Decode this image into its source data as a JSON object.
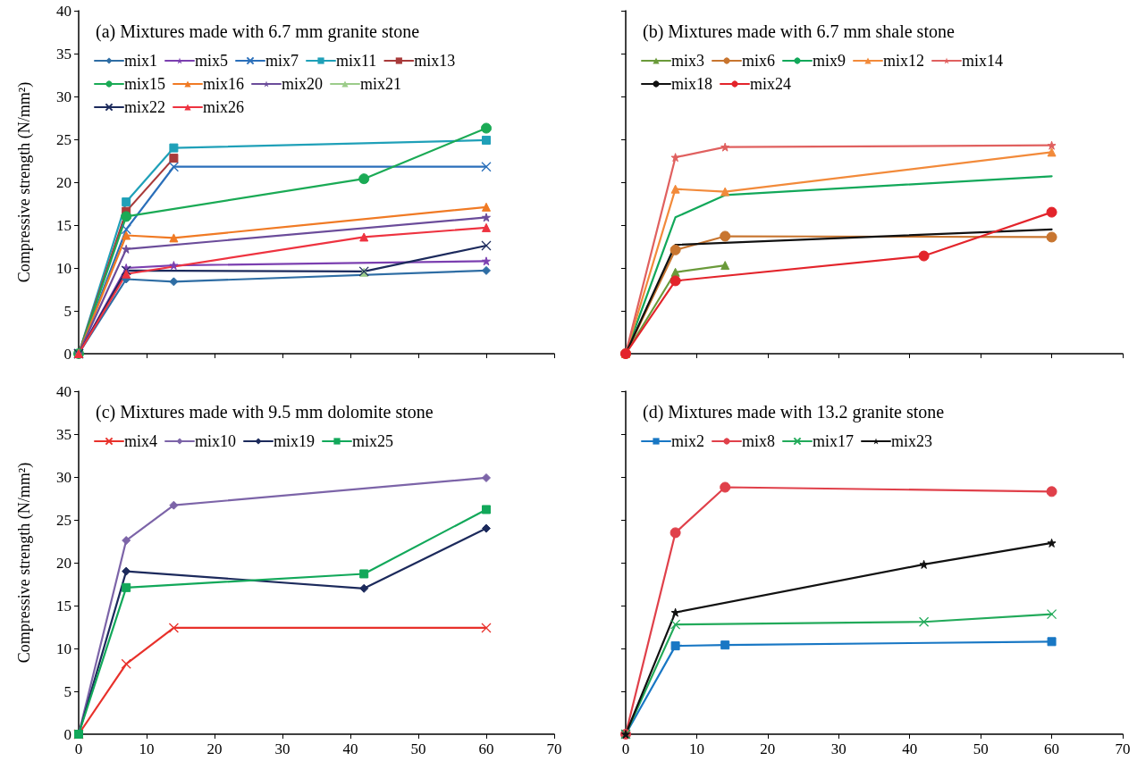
{
  "chart_data": [
    {
      "type": "line",
      "title": "(a) Mixtures made with 6.7 mm granite stone",
      "ylabel": "Compressive strength (N/mm²)",
      "xlim": [
        0,
        70
      ],
      "xticks": [
        0,
        10,
        20,
        30,
        40,
        50,
        60,
        70
      ],
      "ylim": [
        0,
        40
      ],
      "yticks": [
        0,
        5,
        10,
        15,
        20,
        25,
        30,
        35,
        40
      ],
      "tick_labels": "y",
      "legend": "top left",
      "grid": false,
      "series": [
        {
          "name": "mix1",
          "color": "#2e6da4",
          "marker": "diamond",
          "x": [
            0,
            7,
            14,
            60
          ],
          "values": [
            0,
            8.7,
            8.4,
            9.7
          ]
        },
        {
          "name": "mix5",
          "color": "#7b3fb0",
          "marker": "star",
          "x": [
            0,
            7,
            14,
            60
          ],
          "values": [
            0,
            10.0,
            10.3,
            10.8
          ]
        },
        {
          "name": "mix7",
          "color": "#2a6fba",
          "marker": "cross",
          "x": [
            0,
            7,
            14,
            60
          ],
          "values": [
            0,
            14.5,
            21.8,
            21.8
          ]
        },
        {
          "name": "mix11",
          "color": "#1fa0b8",
          "marker": "square",
          "x": [
            0,
            7,
            14,
            60
          ],
          "values": [
            0,
            17.7,
            24.0,
            24.9
          ]
        },
        {
          "name": "mix13",
          "color": "#a83a3a",
          "marker": "square",
          "x": [
            0,
            7,
            14
          ],
          "values": [
            0,
            16.6,
            22.8
          ]
        },
        {
          "name": "mix15",
          "color": "#1aaa55",
          "marker": "circle",
          "x": [
            0,
            7,
            42,
            60
          ],
          "values": [
            0,
            16.0,
            20.4,
            26.3
          ]
        },
        {
          "name": "mix16",
          "color": "#f07a24",
          "marker": "triangle",
          "x": [
            0,
            7,
            14,
            60
          ],
          "values": [
            0,
            13.8,
            13.5,
            17.1
          ]
        },
        {
          "name": "mix20",
          "color": "#6b4c9a",
          "marker": "star",
          "x": [
            0,
            7,
            60
          ],
          "values": [
            0,
            12.2,
            15.9
          ]
        },
        {
          "name": "mix21",
          "color": "#9ccc8a",
          "marker": "triangle",
          "x": [
            0,
            7,
            42
          ],
          "values": [
            0,
            null,
            9.5
          ]
        },
        {
          "name": "mix22",
          "color": "#1c2a5c",
          "marker": "cross",
          "x": [
            0,
            7,
            42,
            60
          ],
          "values": [
            0,
            9.7,
            9.6,
            12.6
          ]
        },
        {
          "name": "mix26",
          "color": "#ee3340",
          "marker": "triangle",
          "x": [
            0,
            7,
            42,
            60
          ],
          "values": [
            0,
            9.3,
            13.6,
            14.7
          ]
        }
      ]
    },
    {
      "type": "line",
      "title": "(b) Mixtures made with 6.7 mm shale stone",
      "xlim": [
        0,
        70
      ],
      "xticks": [
        0,
        10,
        20,
        30,
        40,
        50,
        60,
        70
      ],
      "ylim": [
        0,
        40
      ],
      "yticks": [
        0,
        5,
        10,
        15,
        20,
        25,
        30,
        35,
        40
      ],
      "tick_labels": false,
      "legend": "top left",
      "grid": false,
      "series": [
        {
          "name": "mix3",
          "color": "#6a9a3a",
          "marker": "triangle",
          "x": [
            0,
            7,
            14
          ],
          "values": [
            0,
            9.5,
            10.3
          ]
        },
        {
          "name": "mix6",
          "color": "#c8752f",
          "marker": "circle",
          "x": [
            0,
            7,
            14,
            60
          ],
          "values": [
            0,
            12.1,
            13.7,
            13.6
          ]
        },
        {
          "name": "mix9",
          "color": "#12a85a",
          "marker": "none",
          "x": [
            0,
            7,
            14,
            60
          ],
          "values": [
            0,
            15.9,
            18.5,
            20.7
          ]
        },
        {
          "name": "mix12",
          "color": "#f28a3a",
          "marker": "triangle",
          "x": [
            0,
            7,
            14,
            60
          ],
          "values": [
            0,
            19.2,
            18.9,
            23.5
          ]
        },
        {
          "name": "mix14",
          "color": "#e0605f",
          "marker": "star",
          "x": [
            0,
            7,
            14,
            60
          ],
          "values": [
            0,
            22.9,
            24.1,
            24.3
          ]
        },
        {
          "name": "mix18",
          "color": "#111111",
          "marker": "none",
          "x": [
            0,
            7,
            60
          ],
          "values": [
            0,
            12.7,
            14.5
          ]
        },
        {
          "name": "mix24",
          "color": "#e3242b",
          "marker": "circle",
          "x": [
            0,
            7,
            42,
            60
          ],
          "values": [
            0,
            8.5,
            11.4,
            16.5
          ]
        }
      ]
    },
    {
      "type": "line",
      "title": "(c) Mixtures made with 9.5 mm dolomite stone",
      "ylabel": "Compressive strength (N/mm²)",
      "xlim": [
        0,
        70
      ],
      "xticks": [
        0,
        10,
        20,
        30,
        40,
        50,
        60,
        70
      ],
      "ylim": [
        0,
        40
      ],
      "yticks": [
        0,
        5,
        10,
        15,
        20,
        25,
        30,
        35,
        40
      ],
      "legend": "top left",
      "grid": false,
      "series": [
        {
          "name": "mix4",
          "color": "#e8312b",
          "marker": "cross",
          "x": [
            0,
            7,
            14,
            60
          ],
          "values": [
            0,
            8.2,
            12.4,
            12.4
          ]
        },
        {
          "name": "mix10",
          "color": "#7c64a8",
          "marker": "diamond",
          "x": [
            0,
            7,
            14,
            60
          ],
          "values": [
            0,
            22.6,
            26.7,
            29.9
          ]
        },
        {
          "name": "mix19",
          "color": "#1c2a5c",
          "marker": "diamond",
          "x": [
            0,
            7,
            42,
            60
          ],
          "values": [
            0,
            19.0,
            17.0,
            24.0
          ]
        },
        {
          "name": "mix25",
          "color": "#12a85a",
          "marker": "square",
          "x": [
            0,
            7,
            42,
            60
          ],
          "values": [
            0,
            17.1,
            18.7,
            26.2
          ]
        }
      ]
    },
    {
      "type": "line",
      "title": "(d) Mixtures made with 13.2 granite stone",
      "xlim": [
        0,
        70
      ],
      "xticks": [
        0,
        10,
        20,
        30,
        40,
        50,
        60,
        70
      ],
      "ylim": [
        0,
        40
      ],
      "yticks": [
        0,
        5,
        10,
        15,
        20,
        25,
        30,
        35,
        40
      ],
      "tick_labels": "x",
      "legend": "top left",
      "grid": false,
      "series": [
        {
          "name": "mix2",
          "color": "#1877c4",
          "marker": "square",
          "x": [
            0,
            7,
            14,
            60
          ],
          "values": [
            0,
            10.3,
            10.4,
            10.8
          ]
        },
        {
          "name": "mix8",
          "color": "#e0404a",
          "marker": "circle",
          "x": [
            0,
            7,
            14,
            60
          ],
          "values": [
            0,
            23.5,
            28.8,
            28.3
          ]
        },
        {
          "name": "mix17",
          "color": "#22aa5a",
          "marker": "cross",
          "x": [
            0,
            7,
            42,
            60
          ],
          "values": [
            0,
            12.8,
            13.1,
            14.0
          ]
        },
        {
          "name": "mix23",
          "color": "#111111",
          "marker": "star",
          "x": [
            0,
            7,
            42,
            60
          ],
          "values": [
            0,
            14.2,
            19.8,
            22.3
          ]
        }
      ]
    }
  ]
}
